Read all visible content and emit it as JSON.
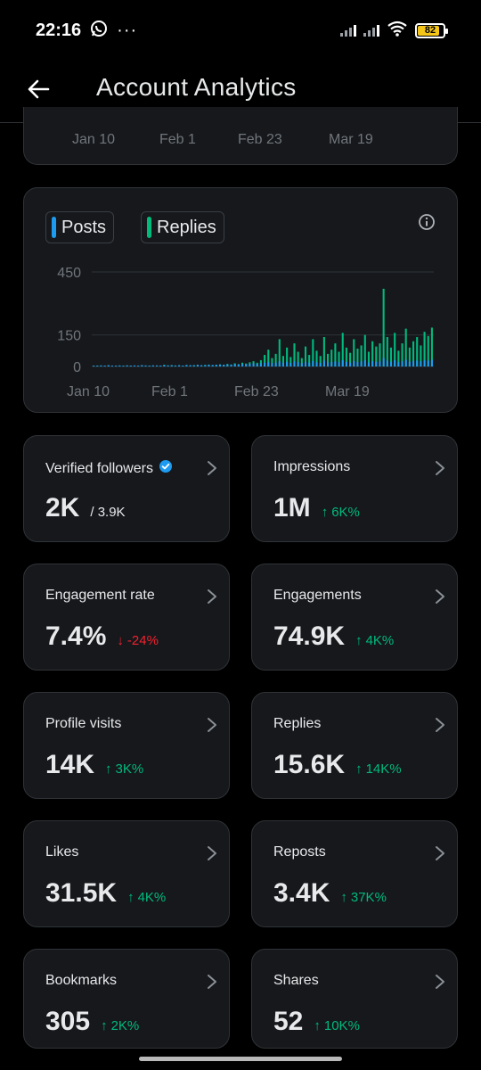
{
  "status": {
    "time": "22:16",
    "battery": "82"
  },
  "header": {
    "title": "Account Analytics"
  },
  "top_axis": [
    "Jan 10",
    "Feb 1",
    "Feb 23",
    "Mar 19"
  ],
  "legend": {
    "posts": "Posts",
    "replies": "Replies",
    "posts_color": "#1d9bf0",
    "replies_color": "#00ba7c"
  },
  "chart_data": {
    "type": "bar",
    "x_ticks": [
      "Jan 10",
      "Feb 1",
      "Feb 23",
      "Mar 19"
    ],
    "y_ticks": [
      0,
      150,
      450
    ],
    "ylim": [
      0,
      450
    ],
    "series": [
      {
        "name": "Replies",
        "color": "#00ba7c",
        "values": [
          3,
          2,
          4,
          3,
          5,
          2,
          3,
          4,
          2,
          5,
          3,
          4,
          3,
          6,
          4,
          3,
          5,
          4,
          3,
          8,
          5,
          6,
          4,
          5,
          3,
          7,
          5,
          6,
          8,
          5,
          7,
          9,
          6,
          8,
          10,
          8,
          12,
          9,
          15,
          11,
          18,
          14,
          20,
          25,
          18,
          30,
          55,
          80,
          40,
          60,
          130,
          50,
          90,
          45,
          110,
          70,
          40,
          95,
          55,
          130,
          75,
          50,
          140,
          60,
          80,
          110,
          70,
          160,
          90,
          65,
          130,
          85,
          100,
          150,
          70,
          120,
          95,
          110,
          370,
          140,
          90,
          160,
          75,
          110,
          180,
          90,
          120,
          140,
          100,
          165,
          145,
          185
        ]
      },
      {
        "name": "Posts",
        "color": "#1d9bf0",
        "values": [
          4,
          3,
          5,
          4,
          6,
          3,
          4,
          5,
          3,
          5,
          4,
          5,
          4,
          6,
          5,
          4,
          5,
          5,
          4,
          7,
          5,
          6,
          5,
          6,
          4,
          7,
          6,
          6,
          8,
          6,
          7,
          8,
          7,
          8,
          9,
          8,
          10,
          9,
          11,
          10,
          12,
          11,
          13,
          15,
          12,
          16,
          18,
          20,
          16,
          18,
          24,
          18,
          22,
          17,
          24,
          20,
          16,
          22,
          18,
          26,
          20,
          17,
          28,
          19,
          21,
          24,
          20,
          30,
          22,
          18,
          26,
          21,
          24,
          30,
          19,
          25,
          22,
          24,
          40,
          28,
          22,
          30,
          20,
          24,
          32,
          22,
          26,
          28,
          24,
          30,
          28,
          32
        ]
      }
    ]
  },
  "stats": [
    {
      "label": "Verified followers",
      "value": "2K",
      "sub": "/ 3.9K",
      "verified": true
    },
    {
      "label": "Impressions",
      "value": "1M",
      "delta": "6K%",
      "dir": "up"
    },
    {
      "label": "Engagement rate",
      "value": "7.4%",
      "delta": "-24%",
      "dir": "down"
    },
    {
      "label": "Engagements",
      "value": "74.9K",
      "delta": "4K%",
      "dir": "up"
    },
    {
      "label": "Profile visits",
      "value": "14K",
      "delta": "3K%",
      "dir": "up"
    },
    {
      "label": "Replies",
      "value": "15.6K",
      "delta": "14K%",
      "dir": "up"
    },
    {
      "label": "Likes",
      "value": "31.5K",
      "delta": "4K%",
      "dir": "up"
    },
    {
      "label": "Reposts",
      "value": "3.4K",
      "delta": "37K%",
      "dir": "up"
    },
    {
      "label": "Bookmarks",
      "value": "305",
      "delta": "2K%",
      "dir": "up"
    },
    {
      "label": "Shares",
      "value": "52",
      "delta": "10K%",
      "dir": "up"
    }
  ]
}
